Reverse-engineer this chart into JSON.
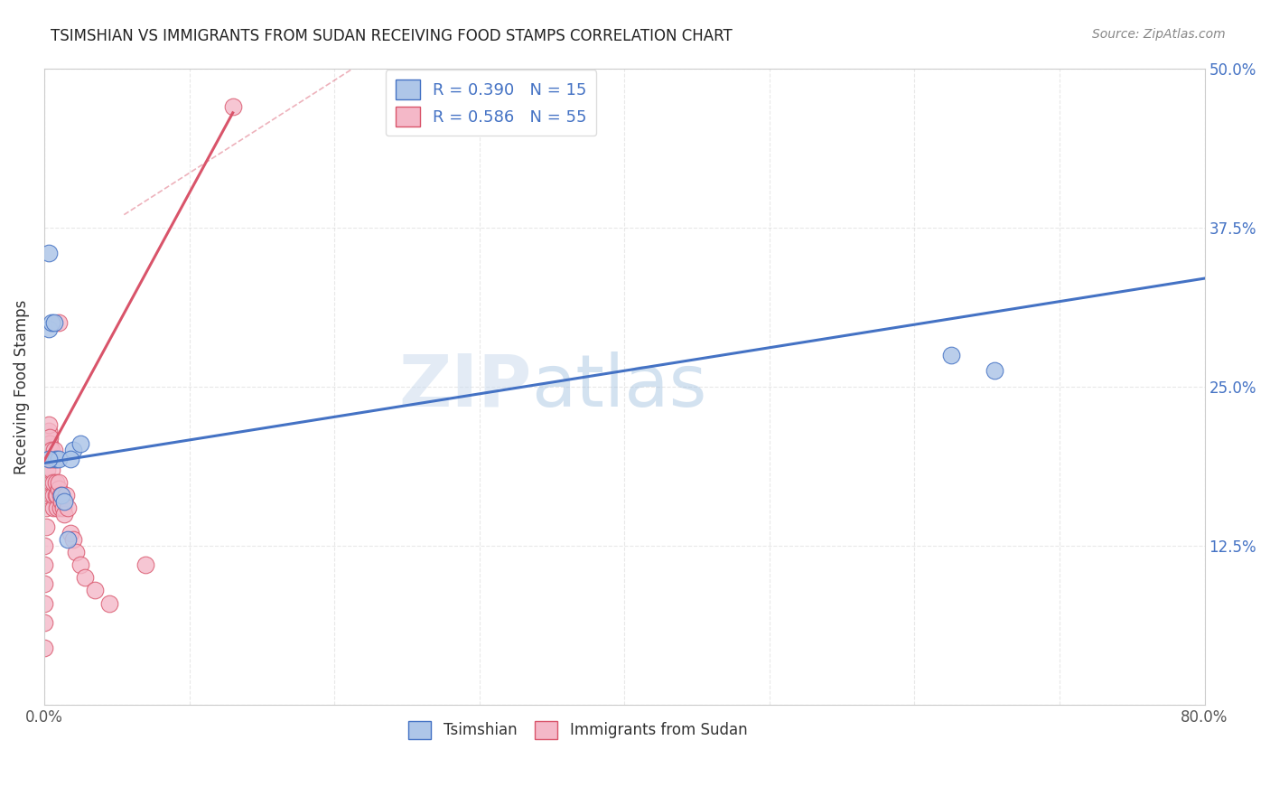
{
  "title": "TSIMSHIAN VS IMMIGRANTS FROM SUDAN RECEIVING FOOD STAMPS CORRELATION CHART",
  "source": "Source: ZipAtlas.com",
  "ylabel": "Receiving Food Stamps",
  "xlim": [
    0,
    0.8
  ],
  "ylim": [
    0,
    0.5
  ],
  "xtick_positions": [
    0.0,
    0.1,
    0.2,
    0.3,
    0.4,
    0.5,
    0.6,
    0.7,
    0.8
  ],
  "xtick_labels": [
    "0.0%",
    "",
    "",
    "",
    "",
    "",
    "",
    "",
    "80.0%"
  ],
  "ytick_positions": [
    0.0,
    0.125,
    0.25,
    0.375,
    0.5
  ],
  "ytick_labels": [
    "",
    "12.5%",
    "25.0%",
    "37.5%",
    "50.0%"
  ],
  "color_tsimshian": "#aec6e8",
  "color_sudan": "#f4b8c8",
  "line_color_tsimshian": "#4472c4",
  "line_color_sudan": "#d9546a",
  "R_tsimshian": 0.39,
  "N_tsimshian": 15,
  "R_sudan": 0.586,
  "N_sudan": 55,
  "legend_label_tsimshian": "Tsimshian",
  "legend_label_sudan": "Immigrants from Sudan",
  "watermark_zip": "ZIP",
  "watermark_atlas": "atlas",
  "blue_line_x": [
    0.0,
    0.8
  ],
  "blue_line_y": [
    0.19,
    0.335
  ],
  "pink_line_x": [
    0.0,
    0.13
  ],
  "pink_line_y": [
    0.192,
    0.465
  ],
  "dash_line_x": [
    0.055,
    0.22
  ],
  "dash_line_y": [
    0.385,
    0.505
  ],
  "tsimshian_x": [
    0.003,
    0.003,
    0.005,
    0.007,
    0.008,
    0.01,
    0.012,
    0.014,
    0.016,
    0.02,
    0.025,
    0.625,
    0.655,
    0.003,
    0.018
  ],
  "tsimshian_y": [
    0.355,
    0.295,
    0.3,
    0.3,
    0.193,
    0.193,
    0.165,
    0.16,
    0.13,
    0.2,
    0.205,
    0.275,
    0.263,
    0.193,
    0.193
  ],
  "sudan_x": [
    0.0,
    0.0,
    0.0,
    0.0,
    0.0,
    0.0,
    0.001,
    0.001,
    0.002,
    0.002,
    0.002,
    0.002,
    0.003,
    0.003,
    0.003,
    0.003,
    0.003,
    0.003,
    0.004,
    0.004,
    0.004,
    0.004,
    0.005,
    0.005,
    0.005,
    0.005,
    0.005,
    0.006,
    0.006,
    0.006,
    0.007,
    0.007,
    0.008,
    0.008,
    0.009,
    0.009,
    0.01,
    0.01,
    0.01,
    0.011,
    0.011,
    0.012,
    0.013,
    0.014,
    0.015,
    0.016,
    0.018,
    0.02,
    0.022,
    0.025,
    0.028,
    0.035,
    0.045,
    0.07,
    0.13
  ],
  "sudan_y": [
    0.045,
    0.065,
    0.08,
    0.095,
    0.11,
    0.125,
    0.14,
    0.155,
    0.165,
    0.175,
    0.185,
    0.193,
    0.193,
    0.2,
    0.205,
    0.21,
    0.215,
    0.22,
    0.193,
    0.2,
    0.205,
    0.21,
    0.165,
    0.175,
    0.185,
    0.193,
    0.2,
    0.155,
    0.165,
    0.175,
    0.193,
    0.2,
    0.165,
    0.175,
    0.155,
    0.165,
    0.17,
    0.175,
    0.3,
    0.155,
    0.165,
    0.16,
    0.155,
    0.15,
    0.165,
    0.155,
    0.135,
    0.13,
    0.12,
    0.11,
    0.1,
    0.09,
    0.08,
    0.11,
    0.47
  ]
}
